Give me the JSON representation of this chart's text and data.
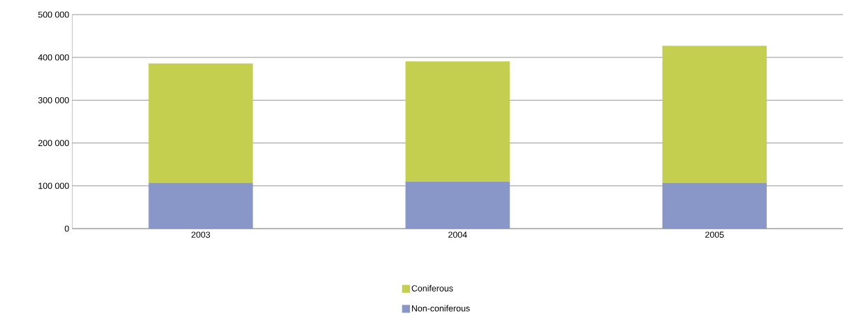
{
  "chart_data": {
    "type": "bar",
    "stacked": true,
    "categories": [
      "2003",
      "2004",
      "2005"
    ],
    "series": [
      {
        "name": "Non-coniferous",
        "color": "#8896c8",
        "values": [
          107000,
          110000,
          107000
        ]
      },
      {
        "name": "Coniferous",
        "color": "#c5cf4f",
        "values": [
          279000,
          281000,
          320000
        ]
      }
    ],
    "ylim": [
      0,
      500000
    ],
    "yticks": [
      0,
      {
        "value": 100000,
        "label": "100 000"
      },
      {
        "value": 200000,
        "label": "200 000"
      },
      {
        "value": 300000,
        "label": "300 000"
      },
      {
        "value": 400000,
        "label": "400 000"
      },
      {
        "value": 500000,
        "label": "500 000"
      }
    ],
    "grid": "y",
    "legend": "bottom"
  }
}
